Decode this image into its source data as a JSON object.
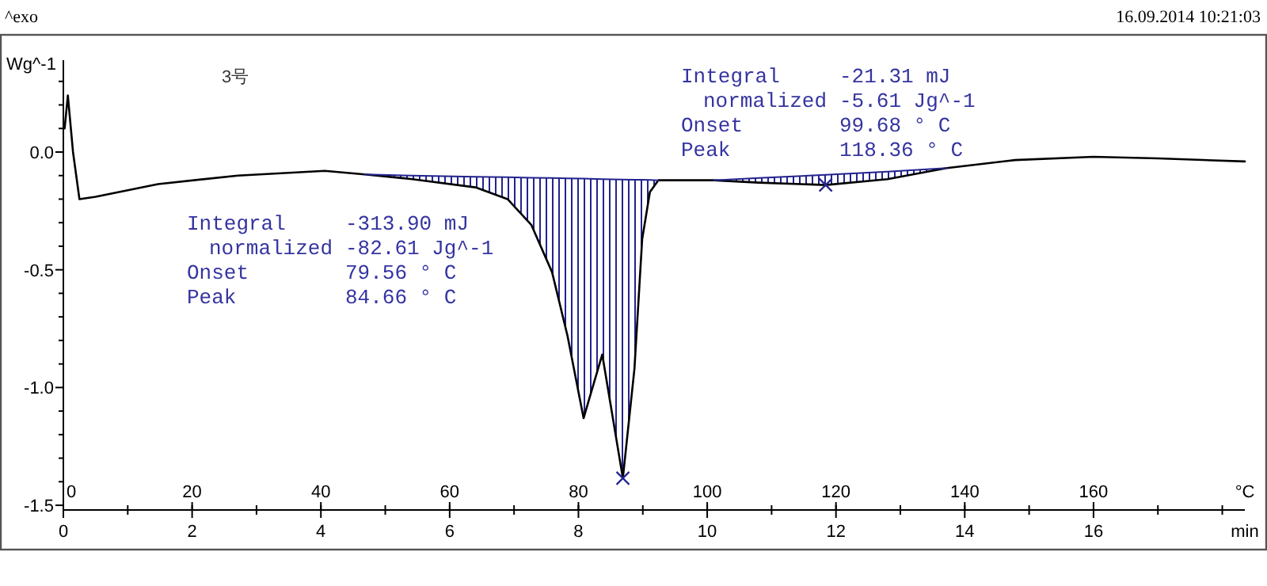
{
  "chart_data": {
    "type": "line",
    "title": "3号",
    "ylabel": "Wg^-1",
    "xlabel": "min",
    "x2label": "°C",
    "annotations": [
      "^exo",
      "16.09.2014 10:21:03",
      "Integral",
      "-313.90 mJ",
      "normalized",
      "-82.61 Jg^-1",
      "Onset",
      "79.56 ° C",
      "Peak",
      "84.66 ° C",
      "Integral",
      "-21.31 mJ",
      "normalized",
      "-5.61 Jg^-1",
      "Onset",
      "99.68 ° C",
      "Peak",
      "118.36 ° C"
    ],
    "xlim": [
      0,
      18.35
    ],
    "ylim": [
      -1.52,
      0.39
    ],
    "x2lim": [
      0,
      183.5
    ],
    "xticks": [
      0,
      {
        "value": 1,
        "label": null
      },
      2,
      {
        "value": 3,
        "label": null
      },
      4,
      {
        "value": 5,
        "label": null
      },
      6,
      {
        "value": 7,
        "label": null
      },
      8,
      {
        "value": 9,
        "label": null
      },
      10,
      {
        "value": 11,
        "label": null
      },
      12,
      {
        "value": 13,
        "label": null
      },
      14,
      {
        "value": 15,
        "label": null
      },
      16,
      {
        "value": 17,
        "label": null
      },
      {
        "value": 18,
        "label": null
      }
    ],
    "x2ticks": [
      0,
      20,
      40,
      60,
      80,
      100,
      120,
      140,
      160
    ],
    "yticks": [
      {
        "value": -1.5,
        "label": "-1.5"
      },
      {
        "value": -1.4,
        "label": null
      },
      {
        "value": -1.3,
        "label": null
      },
      {
        "value": -1.2,
        "label": null
      },
      {
        "value": -1.1,
        "label": null
      },
      {
        "value": -1.0,
        "label": "-1.0"
      },
      {
        "value": -0.9,
        "label": null
      },
      {
        "value": -0.8,
        "label": null
      },
      {
        "value": -0.7,
        "label": null
      },
      {
        "value": -0.6,
        "label": null
      },
      {
        "value": -0.5,
        "label": "-0.5"
      },
      {
        "value": -0.4,
        "label": null
      },
      {
        "value": -0.3,
        "label": null
      },
      {
        "value": -0.2,
        "label": null
      },
      {
        "value": -0.1,
        "label": null
      },
      {
        "value": 0.0,
        "label": "0.0"
      },
      {
        "value": 0.1,
        "label": null
      },
      {
        "value": 0.2,
        "label": null
      },
      {
        "value": 0.3,
        "label": null
      }
    ],
    "series": [
      {
        "color": "#000000",
        "x": [
          0.02,
          0.07,
          0.15,
          0.25,
          0.5,
          1.47,
          2.71,
          4.06,
          4.68,
          5.42,
          6.4,
          6.9,
          7.27,
          7.59,
          7.83,
          8.08,
          8.37,
          8.69,
          8.87,
          8.99,
          9.11,
          9.24,
          10.1,
          10.8,
          11.84,
          12.8,
          13.72,
          14.78,
          16.0,
          17.0,
          18.35
        ],
        "values": [
          0.1,
          0.24,
          0.0,
          -0.2,
          -0.19,
          -0.136,
          -0.1,
          -0.08,
          -0.095,
          -0.115,
          -0.15,
          -0.2,
          -0.31,
          -0.51,
          -0.78,
          -1.13,
          -0.86,
          -1.385,
          -0.92,
          -0.37,
          -0.17,
          -0.12,
          -0.12,
          -0.13,
          -0.14,
          -0.115,
          -0.068,
          -0.034,
          -0.02,
          -0.027,
          -0.04
        ]
      },
      {
        "color": "#23238e",
        "x": [
          4.68,
          5.42,
          6.4,
          6.9,
          7.27,
          7.59,
          7.83,
          8.08,
          8.37,
          8.69,
          8.87,
          8.99,
          9.11,
          9.24
        ],
        "values": [
          -0.095,
          -0.1,
          -0.105,
          -0.107,
          -0.109,
          -0.11,
          -0.112,
          -0.113,
          -0.115,
          -0.117,
          -0.118,
          -0.118,
          -0.119,
          -0.12
        ],
        "lower": [
          -0.095,
          -0.115,
          -0.15,
          -0.2,
          -0.31,
          -0.51,
          -0.78,
          -1.13,
          -0.86,
          -1.385,
          -0.92,
          -0.37,
          -0.17,
          -0.12
        ],
        "upper": [
          -0.095,
          -0.1,
          -0.105,
          -0.107,
          -0.109,
          -0.11,
          -0.112,
          -0.113,
          -0.115,
          -0.117,
          -0.118,
          -0.118,
          -0.119,
          -0.12
        ]
      },
      {
        "color": "#23238e",
        "x": [
          10.1,
          10.8,
          11.84,
          12.8,
          13.72
        ],
        "values": [
          -0.12,
          -0.11,
          -0.097,
          -0.083,
          -0.068
        ],
        "lower": [
          -0.12,
          -0.13,
          -0.14,
          -0.115,
          -0.068
        ],
        "upper": [
          -0.12,
          -0.11,
          -0.097,
          -0.083,
          -0.068
        ]
      },
      {
        "type": "scatter",
        "color": "#23238e",
        "marker": "cross",
        "x": [
          8.69,
          11.84
        ],
        "values": [
          -1.385,
          -0.14
        ]
      }
    ]
  }
}
